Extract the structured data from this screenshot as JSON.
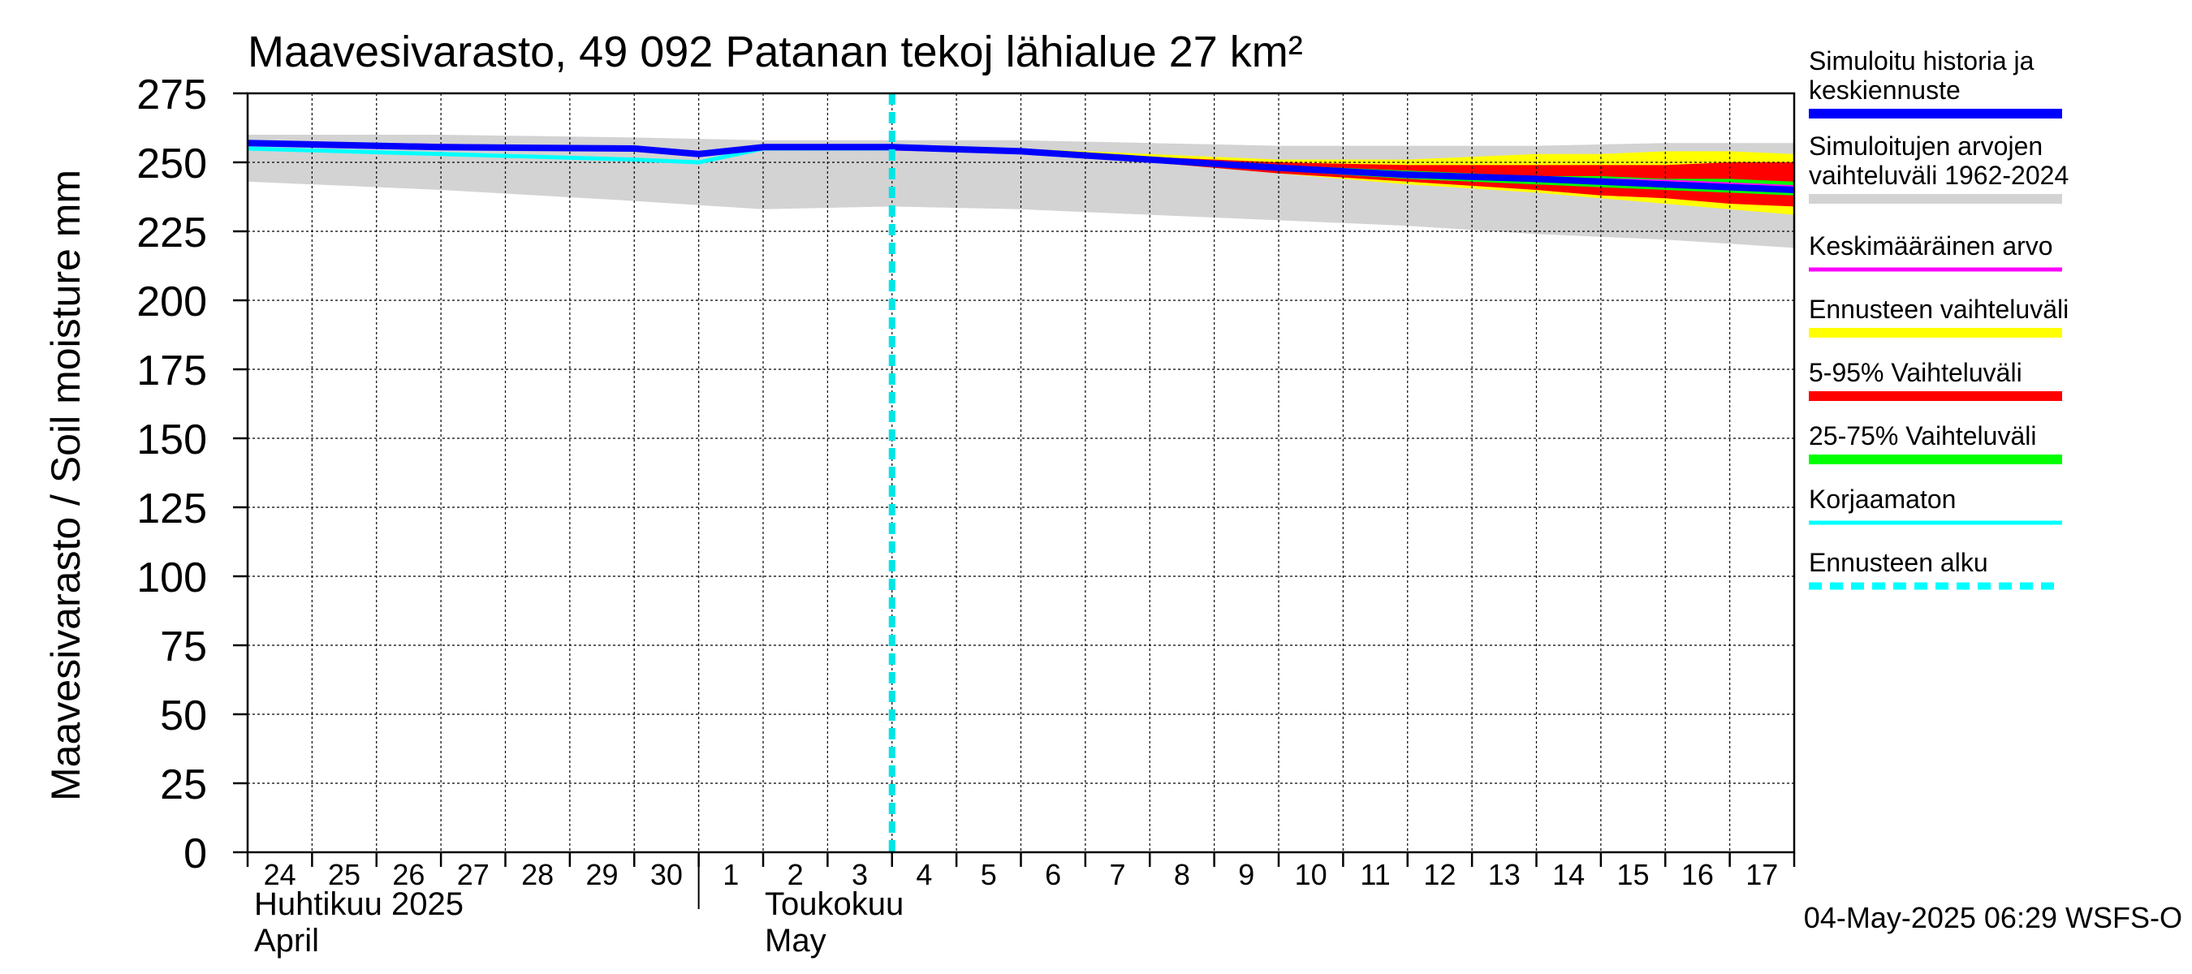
{
  "chart_data": {
    "type": "area",
    "title": "Maavesivarasto, 49 092 Patanan tekoj lähialue 27 km²",
    "ylabel": "Maavesivarasto / Soil moisture   mm",
    "ylim": [
      0,
      275
    ],
    "yticks": [
      0,
      25,
      50,
      75,
      100,
      125,
      150,
      175,
      200,
      225,
      250,
      275
    ],
    "grid": true,
    "x_range": [
      "2025-04-24",
      "2025-05-18"
    ],
    "x_tick_labels": [
      "24",
      "25",
      "26",
      "27",
      "28",
      "29",
      "30",
      "1",
      "2",
      "3",
      "4",
      "5",
      "6",
      "7",
      "8",
      "9",
      "10",
      "11",
      "12",
      "13",
      "14",
      "15",
      "16",
      "17"
    ],
    "month_labels": [
      {
        "line1": "Huhtikuu  2025",
        "line2": "April"
      },
      {
        "line1": "Toukokuu",
        "line2": "May"
      }
    ],
    "forecast_start": "2025-05-04",
    "timestamp": "04-May-2025 06:29 WSFS-O",
    "legend_position": "right",
    "legend": [
      {
        "label": "Simuloitu historia ja\nkeskiennuste",
        "color": "#0000ff",
        "style": "solid"
      },
      {
        "label": "Simuloitujen arvojen\nvaihteluväli 1962-2024",
        "color": "#d3d3d3",
        "style": "solid"
      },
      {
        "label": "Keskimääräinen arvo",
        "color": "#ff00ff",
        "style": "solid"
      },
      {
        "label": "Ennusteen vaihteluväli",
        "color": "#ffff00",
        "style": "solid"
      },
      {
        "label": "5-95% Vaihteluväli",
        "color": "#ff0000",
        "style": "solid"
      },
      {
        "label": "25-75% Vaihteluväli",
        "color": "#00ff00",
        "style": "solid"
      },
      {
        "label": "Korjaamaton",
        "color": "#00ffff",
        "style": "solid"
      },
      {
        "label": "Ennusteen alku",
        "color": "#00ffff",
        "style": "dashed"
      }
    ],
    "series": [
      {
        "name": "Simuloitujen arvojen vaihteluväli 1962-2024",
        "kind": "band",
        "color": "#d3d3d3",
        "x": [
          "2025-04-24",
          "2025-04-27",
          "2025-04-30",
          "2025-05-02",
          "2025-05-04",
          "2025-05-06",
          "2025-05-08",
          "2025-05-10",
          "2025-05-12",
          "2025-05-14",
          "2025-05-16",
          "2025-05-18"
        ],
        "low": [
          243,
          240,
          236,
          233,
          234,
          233,
          231,
          229,
          227,
          224,
          222,
          219
        ],
        "high": [
          260,
          260,
          259,
          258,
          258,
          258,
          257,
          256,
          256,
          256,
          257,
          257
        ]
      },
      {
        "name": "Ennusteen vaihteluväli",
        "kind": "band",
        "color": "#ffff00",
        "x": [
          "2025-05-04",
          "2025-05-06",
          "2025-05-08",
          "2025-05-09",
          "2025-05-10",
          "2025-05-12",
          "2025-05-14",
          "2025-05-15",
          "2025-05-16",
          "2025-05-17",
          "2025-05-18"
        ],
        "low": [
          255,
          253,
          250,
          248,
          246,
          242,
          239,
          237,
          235,
          233,
          231
        ],
        "high": [
          256,
          255,
          253,
          252,
          251,
          251,
          253,
          253,
          254,
          254,
          253
        ]
      },
      {
        "name": "5-95% Vaihteluväli",
        "kind": "band",
        "color": "#ff0000",
        "x": [
          "2025-05-04",
          "2025-05-06",
          "2025-05-08",
          "2025-05-09",
          "2025-05-10",
          "2025-05-12",
          "2025-05-14",
          "2025-05-15",
          "2025-05-16",
          "2025-05-17",
          "2025-05-18"
        ],
        "low": [
          255,
          253,
          250,
          248,
          246,
          243,
          240,
          238,
          237,
          235,
          234
        ],
        "high": [
          256,
          255,
          252,
          251,
          250,
          249,
          249,
          249,
          249,
          250,
          250
        ]
      },
      {
        "name": "25-75% Vaihteluväli",
        "kind": "band",
        "color": "#00ff00",
        "x": [
          "2025-05-04",
          "2025-05-06",
          "2025-05-08",
          "2025-05-09",
          "2025-05-10",
          "2025-05-12",
          "2025-05-14",
          "2025-05-15",
          "2025-05-16",
          "2025-05-17",
          "2025-05-18"
        ],
        "low": [
          255,
          254,
          251,
          249,
          247,
          244,
          242,
          241,
          240,
          239,
          238
        ],
        "high": [
          255,
          254,
          252,
          250,
          249,
          247,
          245,
          245,
          244,
          244,
          243
        ]
      },
      {
        "name": "Keskimääräinen arvo",
        "kind": "line",
        "color": "#ff00ff",
        "x": [
          "2025-04-24",
          "2025-04-27",
          "2025-04-30",
          "2025-05-01",
          "2025-05-02",
          "2025-05-04",
          "2025-05-06",
          "2025-05-08",
          "2025-05-10",
          "2025-05-12",
          "2025-05-14",
          "2025-05-16",
          "2025-05-18"
        ],
        "y": [
          257,
          256,
          255,
          253.5,
          255,
          255,
          254,
          251,
          248,
          245,
          244,
          243,
          241
        ]
      },
      {
        "name": "Korjaamaton",
        "kind": "line",
        "color": "#00ffff",
        "x": [
          "2025-04-24",
          "2025-04-27",
          "2025-04-30",
          "2025-05-01",
          "2025-05-02",
          "2025-05-04"
        ],
        "y": [
          255,
          253,
          251,
          250,
          255,
          255
        ]
      },
      {
        "name": "Simuloitu historia ja keskiennuste",
        "kind": "line",
        "color": "#0000ff",
        "x": [
          "2025-04-24",
          "2025-04-27",
          "2025-04-30",
          "2025-05-01",
          "2025-05-02",
          "2025-05-04",
          "2025-05-06",
          "2025-05-08",
          "2025-05-10",
          "2025-05-12",
          "2025-05-14",
          "2025-05-16",
          "2025-05-18"
        ],
        "y": [
          257,
          255.5,
          255,
          253,
          255.5,
          255.5,
          254,
          251,
          248,
          245.5,
          244,
          242,
          240
        ]
      }
    ]
  }
}
